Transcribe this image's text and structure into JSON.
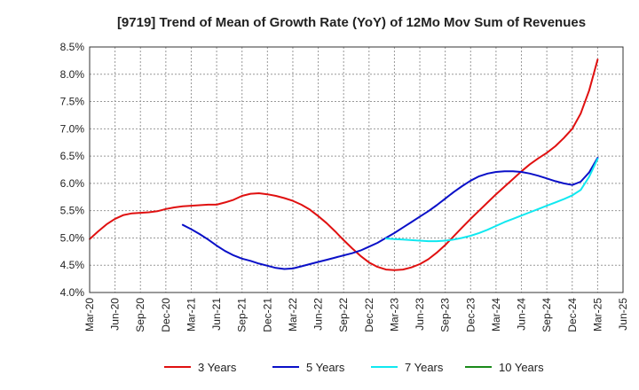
{
  "chart_data": {
    "type": "line",
    "title": "[9719]  Trend of Mean of Growth Rate (YoY) of 12Mo Mov Sum of Revenues",
    "xlabel": "",
    "ylabel": "",
    "x_ticks": [
      "Mar-20",
      "Jun-20",
      "Sep-20",
      "Dec-20",
      "Mar-21",
      "Jun-21",
      "Sep-21",
      "Dec-21",
      "Mar-22",
      "Jun-22",
      "Sep-22",
      "Dec-22",
      "Mar-23",
      "Jun-23",
      "Sep-23",
      "Dec-23",
      "Mar-24",
      "Jun-24",
      "Sep-24",
      "Dec-24",
      "Mar-25",
      "Jun-25"
    ],
    "y_ticks": [
      "8.5%",
      "8.0%",
      "7.5%",
      "7.0%",
      "6.5%",
      "6.0%",
      "5.5%",
      "5.0%",
      "4.5%",
      "4.0%"
    ],
    "y_tick_values": [
      8.5,
      8.0,
      7.5,
      7.0,
      6.5,
      6.0,
      5.5,
      5.0,
      4.5,
      4.0
    ],
    "ylim": [
      4.0,
      8.5
    ],
    "grid": true,
    "legend_position": "bottom",
    "series": [
      {
        "name": "3 Years",
        "color": "#e01010",
        "points": [
          {
            "x": "Mar-20",
            "y": 4.98
          },
          {
            "x": "Apr-20",
            "y": 5.12
          },
          {
            "x": "May-20",
            "y": 5.25
          },
          {
            "x": "Jun-20",
            "y": 5.35
          },
          {
            "x": "Jul-20",
            "y": 5.42
          },
          {
            "x": "Aug-20",
            "y": 5.45
          },
          {
            "x": "Sep-20",
            "y": 5.46
          },
          {
            "x": "Oct-20",
            "y": 5.47
          },
          {
            "x": "Nov-20",
            "y": 5.49
          },
          {
            "x": "Dec-20",
            "y": 5.53
          },
          {
            "x": "Jan-21",
            "y": 5.56
          },
          {
            "x": "Feb-21",
            "y": 5.58
          },
          {
            "x": "Mar-21",
            "y": 5.59
          },
          {
            "x": "Apr-21",
            "y": 5.6
          },
          {
            "x": "May-21",
            "y": 5.61
          },
          {
            "x": "Jun-21",
            "y": 5.61
          },
          {
            "x": "Jul-21",
            "y": 5.65
          },
          {
            "x": "Aug-21",
            "y": 5.7
          },
          {
            "x": "Sep-21",
            "y": 5.77
          },
          {
            "x": "Oct-21",
            "y": 5.81
          },
          {
            "x": "Nov-21",
            "y": 5.82
          },
          {
            "x": "Dec-21",
            "y": 5.8
          },
          {
            "x": "Jan-22",
            "y": 5.77
          },
          {
            "x": "Feb-22",
            "y": 5.73
          },
          {
            "x": "Mar-22",
            "y": 5.68
          },
          {
            "x": "Apr-22",
            "y": 5.61
          },
          {
            "x": "May-22",
            "y": 5.52
          },
          {
            "x": "Jun-22",
            "y": 5.4
          },
          {
            "x": "Jul-22",
            "y": 5.27
          },
          {
            "x": "Aug-22",
            "y": 5.12
          },
          {
            "x": "Sep-22",
            "y": 4.96
          },
          {
            "x": "Oct-22",
            "y": 4.81
          },
          {
            "x": "Nov-22",
            "y": 4.67
          },
          {
            "x": "Dec-22",
            "y": 4.55
          },
          {
            "x": "Jan-23",
            "y": 4.47
          },
          {
            "x": "Feb-23",
            "y": 4.42
          },
          {
            "x": "Mar-23",
            "y": 4.41
          },
          {
            "x": "Apr-23",
            "y": 4.42
          },
          {
            "x": "May-23",
            "y": 4.46
          },
          {
            "x": "Jun-23",
            "y": 4.52
          },
          {
            "x": "Jul-23",
            "y": 4.61
          },
          {
            "x": "Aug-23",
            "y": 4.73
          },
          {
            "x": "Sep-23",
            "y": 4.87
          },
          {
            "x": "Oct-23",
            "y": 5.03
          },
          {
            "x": "Nov-23",
            "y": 5.19
          },
          {
            "x": "Dec-23",
            "y": 5.35
          },
          {
            "x": "Jan-24",
            "y": 5.5
          },
          {
            "x": "Feb-24",
            "y": 5.65
          },
          {
            "x": "Mar-24",
            "y": 5.8
          },
          {
            "x": "Apr-24",
            "y": 5.94
          },
          {
            "x": "May-24",
            "y": 6.08
          },
          {
            "x": "Jun-24",
            "y": 6.22
          },
          {
            "x": "Jul-24",
            "y": 6.35
          },
          {
            "x": "Aug-24",
            "y": 6.46
          },
          {
            "x": "Sep-24",
            "y": 6.56
          },
          {
            "x": "Oct-24",
            "y": 6.68
          },
          {
            "x": "Nov-24",
            "y": 6.83
          },
          {
            "x": "Dec-24",
            "y": 7.0
          },
          {
            "x": "Jan-25",
            "y": 7.28
          },
          {
            "x": "Feb-25",
            "y": 7.7
          },
          {
            "x": "Mar-25",
            "y": 8.27
          }
        ]
      },
      {
        "name": "5 Years",
        "color": "#0a10c8",
        "points": [
          {
            "x": "Feb-21",
            "y": 5.24
          },
          {
            "x": "Mar-21",
            "y": 5.16
          },
          {
            "x": "Apr-21",
            "y": 5.07
          },
          {
            "x": "May-21",
            "y": 4.97
          },
          {
            "x": "Jun-21",
            "y": 4.86
          },
          {
            "x": "Jul-21",
            "y": 4.76
          },
          {
            "x": "Aug-21",
            "y": 4.68
          },
          {
            "x": "Sep-21",
            "y": 4.62
          },
          {
            "x": "Oct-21",
            "y": 4.58
          },
          {
            "x": "Nov-21",
            "y": 4.53
          },
          {
            "x": "Dec-21",
            "y": 4.49
          },
          {
            "x": "Jan-22",
            "y": 4.45
          },
          {
            "x": "Feb-22",
            "y": 4.43
          },
          {
            "x": "Mar-22",
            "y": 4.44
          },
          {
            "x": "Apr-22",
            "y": 4.48
          },
          {
            "x": "May-22",
            "y": 4.52
          },
          {
            "x": "Jun-22",
            "y": 4.56
          },
          {
            "x": "Jul-22",
            "y": 4.6
          },
          {
            "x": "Aug-22",
            "y": 4.64
          },
          {
            "x": "Sep-22",
            "y": 4.68
          },
          {
            "x": "Oct-22",
            "y": 4.72
          },
          {
            "x": "Nov-22",
            "y": 4.77
          },
          {
            "x": "Dec-22",
            "y": 4.84
          },
          {
            "x": "Jan-23",
            "y": 4.91
          },
          {
            "x": "Feb-23",
            "y": 5.0
          },
          {
            "x": "Mar-23",
            "y": 5.09
          },
          {
            "x": "Apr-23",
            "y": 5.19
          },
          {
            "x": "May-23",
            "y": 5.29
          },
          {
            "x": "Jun-23",
            "y": 5.39
          },
          {
            "x": "Jul-23",
            "y": 5.49
          },
          {
            "x": "Aug-23",
            "y": 5.6
          },
          {
            "x": "Sep-23",
            "y": 5.72
          },
          {
            "x": "Oct-23",
            "y": 5.84
          },
          {
            "x": "Nov-23",
            "y": 5.95
          },
          {
            "x": "Dec-23",
            "y": 6.05
          },
          {
            "x": "Jan-24",
            "y": 6.13
          },
          {
            "x": "Feb-24",
            "y": 6.18
          },
          {
            "x": "Mar-24",
            "y": 6.21
          },
          {
            "x": "Apr-24",
            "y": 6.22
          },
          {
            "x": "May-24",
            "y": 6.22
          },
          {
            "x": "Jun-24",
            "y": 6.21
          },
          {
            "x": "Jul-24",
            "y": 6.18
          },
          {
            "x": "Aug-24",
            "y": 6.14
          },
          {
            "x": "Sep-24",
            "y": 6.09
          },
          {
            "x": "Oct-24",
            "y": 6.04
          },
          {
            "x": "Nov-24",
            "y": 6.0
          },
          {
            "x": "Dec-24",
            "y": 5.97
          },
          {
            "x": "Jan-25",
            "y": 6.03
          },
          {
            "x": "Feb-25",
            "y": 6.2
          },
          {
            "x": "Mar-25",
            "y": 6.47
          }
        ]
      },
      {
        "name": "7 Years",
        "color": "#10e8f0",
        "points": [
          {
            "x": "Feb-23",
            "y": 4.99
          },
          {
            "x": "Mar-23",
            "y": 4.98
          },
          {
            "x": "Apr-23",
            "y": 4.97
          },
          {
            "x": "May-23",
            "y": 4.96
          },
          {
            "x": "Jun-23",
            "y": 4.95
          },
          {
            "x": "Jul-23",
            "y": 4.94
          },
          {
            "x": "Aug-23",
            "y": 4.94
          },
          {
            "x": "Sep-23",
            "y": 4.95
          },
          {
            "x": "Oct-23",
            "y": 4.97
          },
          {
            "x": "Nov-23",
            "y": 5.0
          },
          {
            "x": "Dec-23",
            "y": 5.04
          },
          {
            "x": "Jan-24",
            "y": 5.09
          },
          {
            "x": "Feb-24",
            "y": 5.15
          },
          {
            "x": "Mar-24",
            "y": 5.22
          },
          {
            "x": "Apr-24",
            "y": 5.29
          },
          {
            "x": "May-24",
            "y": 5.35
          },
          {
            "x": "Jun-24",
            "y": 5.41
          },
          {
            "x": "Jul-24",
            "y": 5.47
          },
          {
            "x": "Aug-24",
            "y": 5.53
          },
          {
            "x": "Sep-24",
            "y": 5.59
          },
          {
            "x": "Oct-24",
            "y": 5.65
          },
          {
            "x": "Nov-24",
            "y": 5.71
          },
          {
            "x": "Dec-24",
            "y": 5.78
          },
          {
            "x": "Jan-25",
            "y": 5.88
          },
          {
            "x": "Feb-25",
            "y": 6.12
          },
          {
            "x": "Mar-25",
            "y": 6.45
          }
        ]
      },
      {
        "name": "10 Years",
        "color": "#1a8a1a",
        "points": []
      }
    ]
  }
}
